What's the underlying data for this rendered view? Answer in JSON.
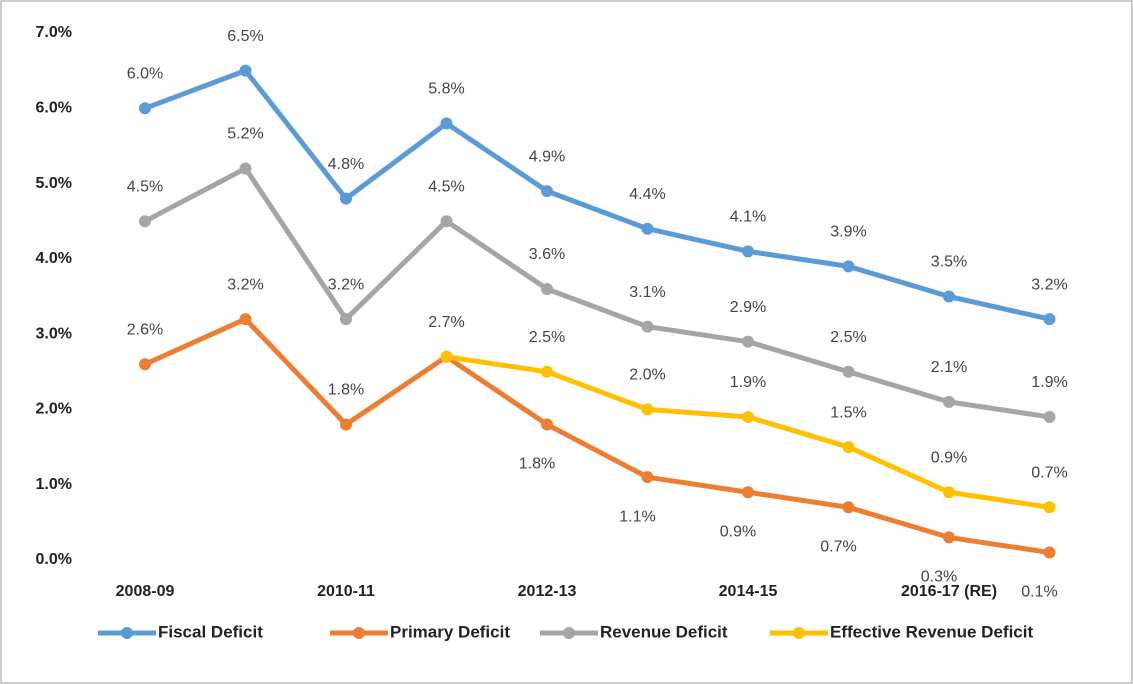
{
  "chart_data": {
    "type": "line",
    "categories": [
      "2008-09",
      null,
      "2010-11",
      null,
      "2012-13",
      null,
      "2014-15",
      null,
      "2016-17 (RE)",
      null
    ],
    "ylim": [
      0,
      7
    ],
    "yticks": [
      {
        "value": 0,
        "label": "0.0%"
      },
      {
        "value": 1,
        "label": "1.0%"
      },
      {
        "value": 2,
        "label": "2.0%"
      },
      {
        "value": 3,
        "label": "3.0%"
      },
      {
        "value": 4,
        "label": "4.0%"
      },
      {
        "value": 5,
        "label": "5.0%"
      },
      {
        "value": 6,
        "label": "6.0%"
      },
      {
        "value": 7,
        "label": "7.0%"
      }
    ],
    "grid": false,
    "legend": "bottom",
    "series": [
      {
        "name": "Fiscal Deficit",
        "color": "#5b9bd5",
        "values": [
          6.0,
          6.5,
          4.8,
          5.8,
          4.9,
          4.4,
          4.1,
          3.9,
          3.5,
          3.2
        ],
        "value_labels": [
          "6.0%",
          "6.5%",
          "4.8%",
          "5.8%",
          "4.9%",
          "4.4%",
          "4.1%",
          "3.9%",
          "3.5%",
          "3.2%"
        ]
      },
      {
        "name": "Primary Deficit",
        "color": "#ed7d31",
        "values": [
          2.6,
          3.2,
          1.8,
          2.7,
          1.8,
          1.1,
          0.9,
          0.7,
          0.3,
          0.1
        ],
        "value_labels": [
          "2.6%",
          "3.2%",
          "1.8%",
          "2.7%",
          "1.8%",
          "1.1%",
          "0.9%",
          "0.7%",
          "0.3%",
          "0.1%"
        ]
      },
      {
        "name": "Revenue Deficit",
        "color": "#a5a5a5",
        "values": [
          4.5,
          5.2,
          3.2,
          4.5,
          3.6,
          3.1,
          2.9,
          2.5,
          2.1,
          1.9
        ],
        "value_labels": [
          "4.5%",
          "5.2%",
          "3.2%",
          "4.5%",
          "3.6%",
          "3.1%",
          "2.9%",
          "2.5%",
          "2.1%",
          "1.9%"
        ]
      },
      {
        "name": "Effective Revenue Deficit",
        "color": "#ffc000",
        "values": [
          null,
          null,
          null,
          2.7,
          2.5,
          2.0,
          1.9,
          1.5,
          0.9,
          0.7
        ],
        "value_labels": [
          null,
          null,
          null,
          null,
          "2.5%",
          "2.0%",
          "1.9%",
          "1.5%",
          "0.9%",
          "0.7%"
        ]
      }
    ]
  }
}
